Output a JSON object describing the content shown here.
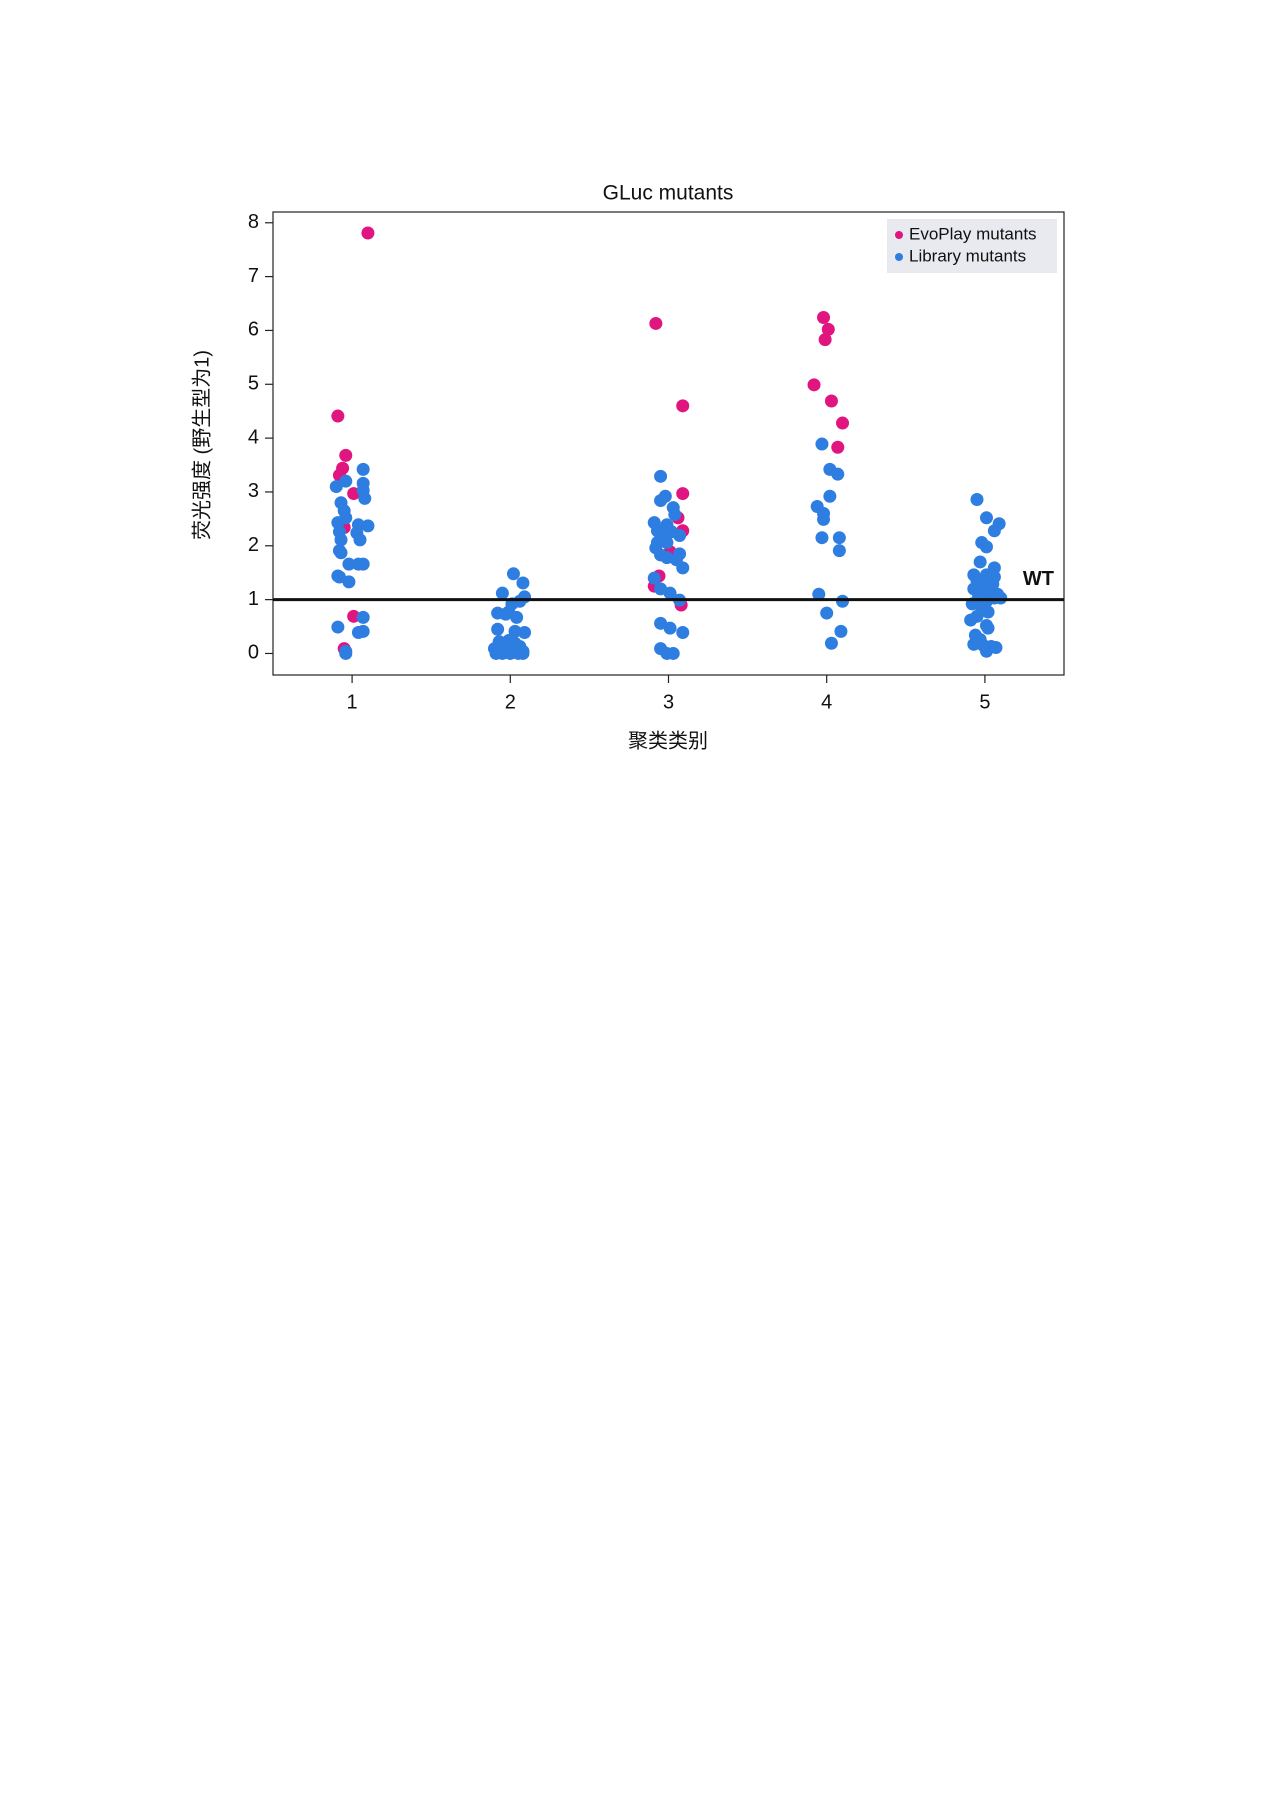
{
  "chart_data": {
    "type": "scatter",
    "title": "GLuc mutants",
    "x_label": "聚类类别",
    "y_label": "荧光强度 (野生型为1)",
    "xlim": [
      0.5,
      5.5
    ],
    "xticks": [
      1,
      2,
      3,
      4,
      5
    ],
    "ylim": [
      -0.4,
      8.2
    ],
    "yticks": [
      0,
      1,
      2,
      3,
      4,
      5,
      6,
      7,
      8
    ],
    "grid": false,
    "legend": "top-right",
    "reference_line": {
      "value": 1,
      "label": "WT"
    },
    "series": [
      {
        "name": "EvoPlay mutants",
        "color": "#e0157f",
        "x": [
          1.1,
          0.91,
          0.96,
          0.94,
          0.92,
          1.01,
          0.95,
          1.01,
          0.95,
          2.92,
          3.09,
          3.09,
          3.06,
          3.09,
          3.01,
          2.94,
          2.91,
          3.08,
          3.98,
          4.01,
          3.99,
          3.92,
          4.03,
          4.1,
          4.07
        ],
        "values": [
          7.81,
          4.41,
          3.68,
          3.44,
          3.31,
          2.97,
          2.34,
          0.69,
          0.09,
          6.13,
          4.6,
          2.97,
          2.52,
          2.28,
          1.89,
          1.44,
          1.25,
          0.9,
          6.24,
          6.02,
          5.83,
          4.99,
          4.69,
          4.28,
          3.83
        ]
      },
      {
        "name": "Library mutants",
        "color": "#2e7de0",
        "x": [
          1.07,
          0.9,
          0.96,
          1.07,
          1.07,
          1.08,
          0.93,
          0.95,
          0.96,
          0.91,
          1.04,
          1.1,
          0.92,
          1.03,
          0.93,
          1.05,
          0.92,
          0.93,
          0.98,
          1.04,
          1.07,
          0.91,
          0.92,
          0.98,
          1.07,
          0.91,
          1.07,
          1.04,
          0.96,
          0.96,
          2.02,
          2.08,
          1.95,
          2.09,
          2.06,
          2.01,
          1.99,
          1.92,
          2.04,
          1.97,
          1.92,
          2.03,
          2.09,
          1.93,
          1.99,
          2.03,
          1.95,
          2.06,
          1.9,
          2.0,
          2.08,
          1.91,
          1.95,
          2.0,
          2.05,
          2.08,
          1.98,
          2.95,
          2.98,
          2.95,
          3.03,
          3.04,
          2.91,
          2.99,
          2.93,
          3.02,
          2.97,
          3.07,
          2.93,
          2.99,
          2.92,
          3.07,
          2.95,
          2.99,
          3.05,
          3.09,
          2.91,
          2.95,
          3.01,
          3.07,
          2.95,
          3.01,
          3.09,
          2.95,
          2.99,
          3.03,
          3.97,
          4.02,
          4.07,
          4.02,
          3.94,
          3.98,
          3.98,
          4.08,
          3.97,
          4.08,
          3.95,
          4.1,
          4.0,
          4.09,
          4.03,
          4.95,
          5.01,
          5.09,
          5.06,
          4.98,
          5.01,
          4.97,
          5.06,
          4.93,
          5.01,
          5.06,
          4.95,
          5.0,
          5.05,
          4.93,
          4.98,
          5.03,
          5.08,
          4.96,
          5.06,
          5.1,
          5.01,
          4.92,
          4.97,
          5.02,
          4.95,
          4.91,
          5.01,
          5.02,
          4.94,
          4.97,
          4.93,
          4.99,
          5.04,
          5.07,
          5.01
        ],
        "values": [
          3.42,
          3.1,
          3.2,
          3.16,
          3.03,
          2.88,
          2.8,
          2.65,
          2.52,
          2.43,
          2.39,
          2.37,
          2.26,
          2.24,
          2.11,
          2.11,
          1.91,
          1.87,
          1.66,
          1.66,
          1.66,
          1.44,
          1.42,
          1.33,
          0.67,
          0.49,
          0.41,
          0.39,
          0.0,
          0.04,
          1.48,
          1.31,
          1.12,
          1.05,
          0.97,
          0.92,
          0.77,
          0.75,
          0.67,
          0.73,
          0.45,
          0.41,
          0.39,
          0.22,
          0.24,
          0.19,
          0.15,
          0.13,
          0.09,
          0.06,
          0.04,
          0.0,
          0.0,
          0.0,
          0.0,
          0.0,
          0.02,
          3.29,
          2.92,
          2.84,
          2.71,
          2.58,
          2.43,
          2.39,
          2.28,
          2.26,
          2.19,
          2.19,
          2.06,
          2.06,
          1.96,
          1.85,
          1.83,
          1.78,
          1.74,
          1.59,
          1.4,
          1.2,
          1.12,
          0.99,
          0.56,
          0.47,
          0.39,
          0.09,
          0.0,
          0.0,
          3.89,
          3.42,
          3.33,
          2.92,
          2.73,
          2.6,
          2.49,
          2.15,
          2.15,
          1.91,
          1.1,
          0.97,
          0.75,
          0.41,
          0.19,
          2.86,
          2.52,
          2.41,
          2.28,
          2.06,
          1.98,
          1.7,
          1.59,
          1.46,
          1.46,
          1.42,
          1.35,
          1.31,
          1.29,
          1.2,
          1.2,
          1.16,
          1.1,
          1.05,
          1.03,
          1.03,
          0.97,
          0.92,
          0.9,
          0.77,
          0.69,
          0.62,
          0.52,
          0.47,
          0.34,
          0.26,
          0.17,
          0.15,
          0.13,
          0.11,
          0.04
        ]
      }
    ]
  }
}
